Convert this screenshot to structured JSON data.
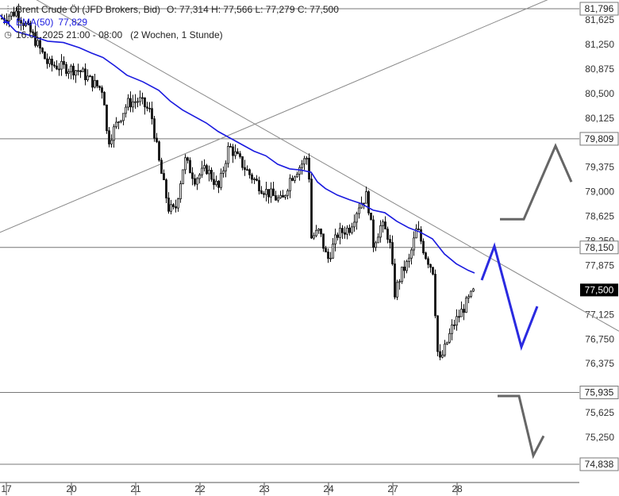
{
  "legend": {
    "instrument": "Brent Crude Öl (JFD Brokers, Bid)",
    "ohlc": "O: 77,314  H: 77,566  L: 77,279  C: 77,500",
    "ema_label": "EMA(50)",
    "ema_value": "77,829",
    "range": "16.01.2025 21:00 - 08:00",
    "timeframe": "(2 Wochen, 1 Stunde)"
  },
  "colors": {
    "ema": "#1a1adf",
    "candle": "#111111",
    "trend_lines": "#888888",
    "level_lines": "#777777",
    "scenario_up": "#666666",
    "scenario_down": "#666666",
    "scenario_primary": "#2a2ae0",
    "last_price_bg": "#000000"
  },
  "chart_data": {
    "type": "candlestick",
    "title": "",
    "xlabel": "",
    "ylabel": "",
    "y_axis": {
      "ylim": [
        74.838,
        81.796
      ],
      "tick_labels": [
        "81,625",
        "81,250",
        "80,875",
        "80,500",
        "80,125",
        "79,375",
        "79,000",
        "78,625",
        "78,250",
        "77,875",
        "77,125",
        "76,750",
        "76,375",
        "75,625",
        "75,250"
      ]
    },
    "x_axis": {
      "tick_labels": [
        "17",
        "20",
        "21",
        "22",
        "23",
        "24",
        "27",
        "28"
      ]
    },
    "horizontal_levels": [
      {
        "value": 81.796,
        "label": "81,796"
      },
      {
        "value": 79.809,
        "label": "79,809"
      },
      {
        "value": 78.15,
        "label": "78,150"
      },
      {
        "value": 75.935,
        "label": "75,935"
      },
      {
        "value": 74.838,
        "label": "74,838"
      }
    ],
    "last_price": {
      "value": 77.5,
      "label": "77,500"
    },
    "ema": {
      "name": "EMA(50)",
      "points": [
        [
          0,
          81.7
        ],
        [
          8,
          81.6
        ],
        [
          20,
          81.45
        ],
        [
          40,
          81.38
        ],
        [
          60,
          81.3
        ],
        [
          80,
          81.28
        ],
        [
          100,
          81.2
        ],
        [
          115,
          81.12
        ],
        [
          130,
          81.05
        ],
        [
          145,
          80.92
        ],
        [
          160,
          80.78
        ],
        [
          180,
          80.68
        ],
        [
          200,
          80.55
        ],
        [
          215,
          80.38
        ],
        [
          230,
          80.25
        ],
        [
          245,
          80.15
        ],
        [
          260,
          80.05
        ],
        [
          275,
          79.92
        ],
        [
          290,
          79.82
        ],
        [
          305,
          79.72
        ],
        [
          320,
          79.62
        ],
        [
          335,
          79.55
        ],
        [
          350,
          79.42
        ],
        [
          365,
          79.35
        ],
        [
          380,
          79.33
        ],
        [
          392,
          79.3
        ],
        [
          400,
          79.15
        ],
        [
          410,
          79.05
        ],
        [
          425,
          78.95
        ],
        [
          440,
          78.88
        ],
        [
          455,
          78.82
        ],
        [
          470,
          78.72
        ],
        [
          485,
          78.68
        ],
        [
          500,
          78.55
        ],
        [
          515,
          78.45
        ],
        [
          530,
          78.38
        ],
        [
          545,
          78.28
        ],
        [
          560,
          78.05
        ],
        [
          575,
          77.9
        ],
        [
          590,
          77.8
        ],
        [
          598,
          77.76
        ]
      ]
    },
    "trend_lines": [
      {
        "name": "rising",
        "from": [
          0,
          78.38
        ],
        "to": [
          703,
          82.0
        ]
      },
      {
        "name": "falling",
        "from": [
          0,
          82.25
        ],
        "to": [
          780,
          76.87
        ]
      }
    ],
    "candles_summary": {
      "x_range": [
        0,
        600
      ],
      "max": 81.8,
      "min": 76.25,
      "last_close": 77.5
    },
    "scenarios": [
      {
        "name": "bullish",
        "color": "#666666",
        "points": [
          [
            630,
            78.58
          ],
          [
            660,
            78.58
          ],
          [
            700,
            79.7
          ],
          [
            720,
            79.15
          ]
        ]
      },
      {
        "name": "primary",
        "color": "#2a2ae0",
        "points": [
          [
            607,
            77.65
          ],
          [
            623,
            78.17
          ],
          [
            657,
            76.63
          ],
          [
            677,
            77.25
          ]
        ]
      },
      {
        "name": "bearish",
        "color": "#666666",
        "points": [
          [
            627,
            75.88
          ],
          [
            654,
            75.88
          ],
          [
            672,
            74.97
          ],
          [
            685,
            75.27
          ]
        ]
      }
    ]
  }
}
